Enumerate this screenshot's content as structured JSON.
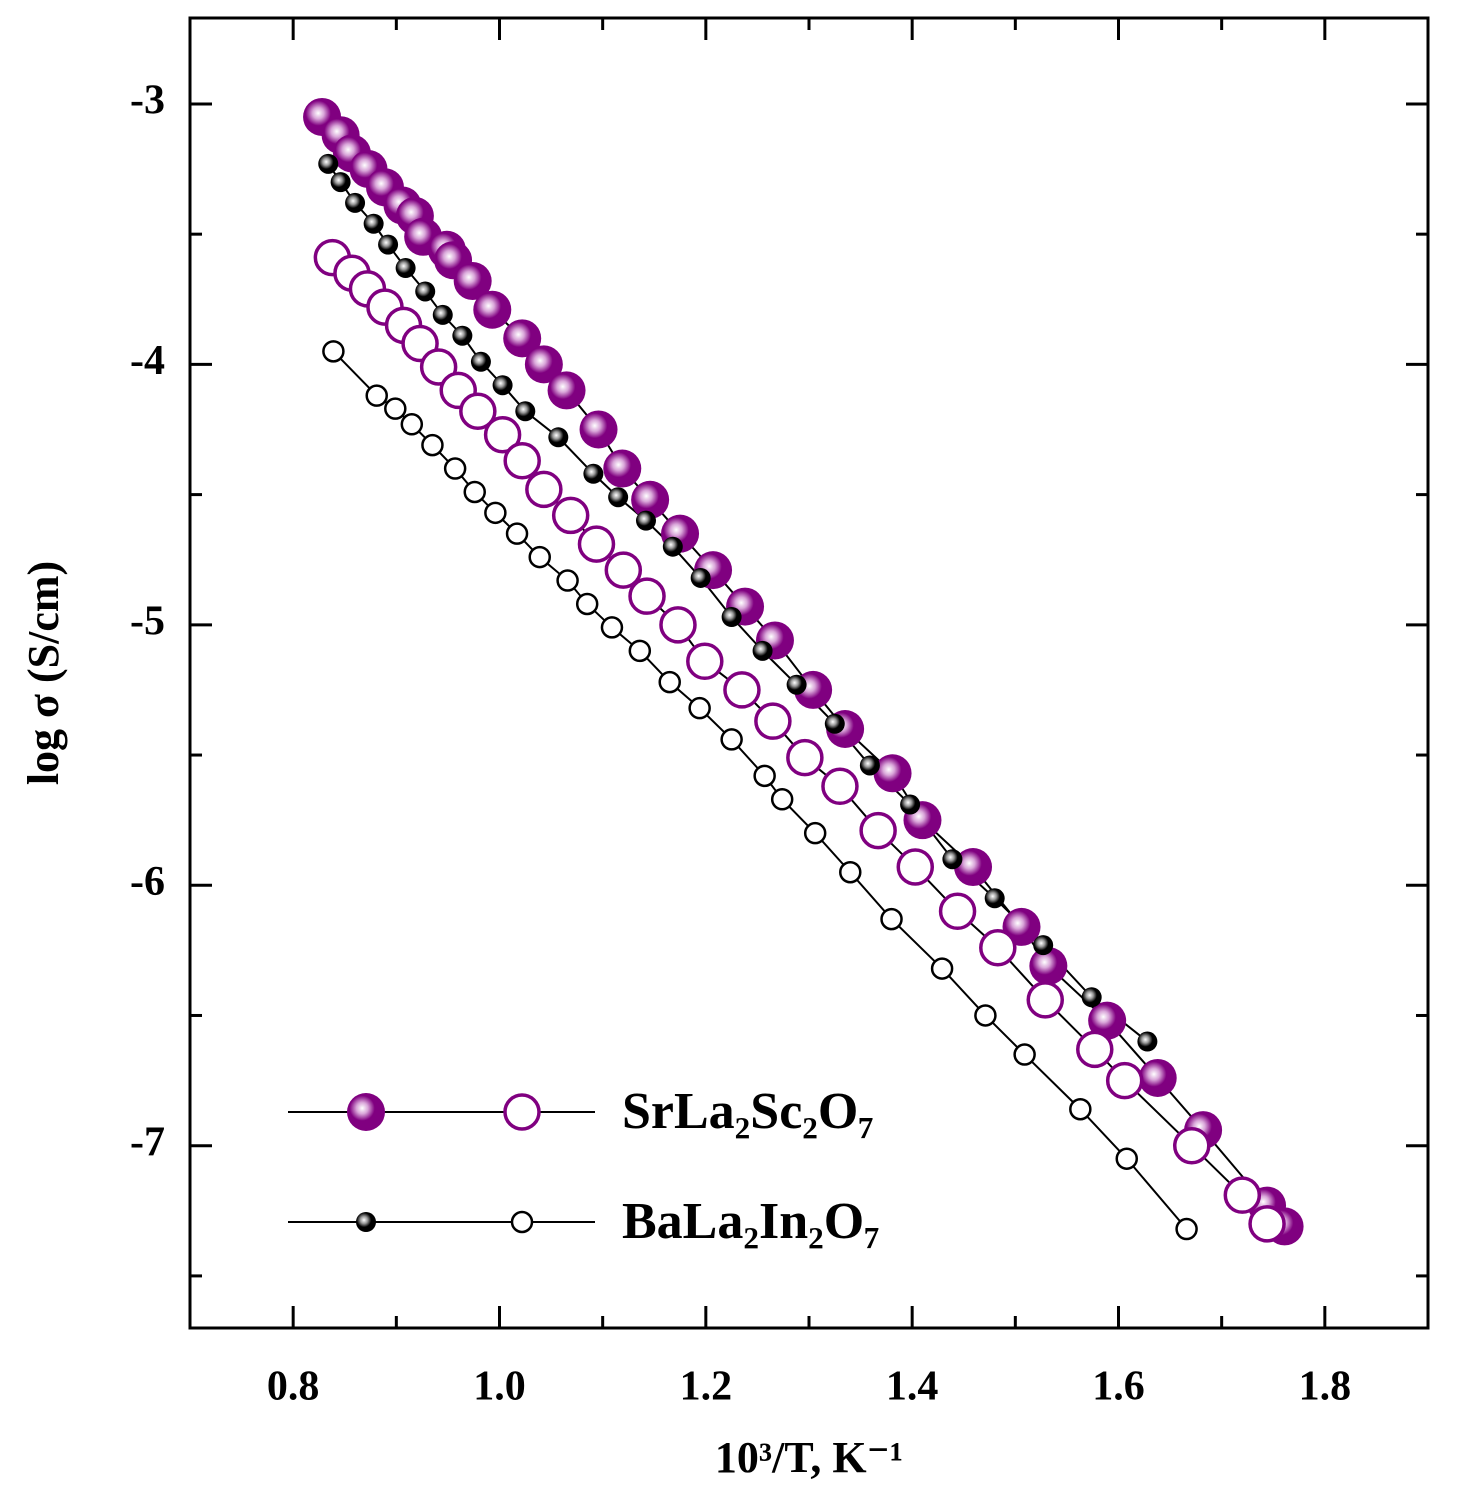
{
  "chart_data": {
    "type": "scatter",
    "x_label": "10³/T, K⁻¹",
    "y_label": "log σ (S/cm)",
    "xlim": [
      0.7,
      1.9
    ],
    "ylim": [
      -7.7,
      -2.67
    ],
    "xticks": [
      0.8,
      {
        "value": 1,
        "label": "1.0"
      },
      1.2,
      1.4,
      1.6,
      1.8
    ],
    "xminor": [
      0.9,
      1.1,
      1.3,
      1.5,
      1.7
    ],
    "yticks": [
      -3,
      -4,
      -5,
      -6,
      -7
    ],
    "yminor": [
      -3.5,
      -4.5,
      -5.5,
      -6.5,
      -7.5
    ],
    "series": [
      {
        "name": "SrLa₂Sc₂O₇",
        "color": "#800080",
        "size": "large",
        "markers": [
          {
            "style": "filled",
            "x": [
              0.828,
              0.846,
              0.857,
              0.873,
              0.889,
              0.906,
              0.918,
              0.926,
              0.949,
              0.955,
              0.974,
              0.993,
              1.022,
              1.043,
              1.065,
              1.096,
              1.119,
              1.146,
              1.175,
              1.207,
              1.238,
              1.267,
              1.304,
              1.335,
              1.381,
              1.41,
              1.459,
              1.506,
              1.532,
              1.589,
              1.638,
              1.682,
              1.744,
              1.761
            ],
            "values": [
              -3.05,
              -3.12,
              -3.19,
              -3.25,
              -3.32,
              -3.39,
              -3.43,
              -3.51,
              -3.56,
              -3.6,
              -3.68,
              -3.79,
              -3.9,
              -4,
              -4.1,
              -4.25,
              -4.4,
              -4.52,
              -4.65,
              -4.79,
              -4.93,
              -5.06,
              -5.25,
              -5.4,
              -5.57,
              -5.75,
              -5.93,
              -6.16,
              -6.31,
              -6.52,
              -6.74,
              -6.94,
              -7.23,
              -7.31
            ]
          },
          {
            "style": "open",
            "x": [
              0.838,
              0.857,
              0.872,
              0.889,
              0.907,
              0.923,
              0.941,
              0.96,
              0.979,
              1.003,
              1.022,
              1.043,
              1.069,
              1.094,
              1.12,
              1.143,
              1.173,
              1.199,
              1.235,
              1.265,
              1.296,
              1.33,
              1.367,
              1.403,
              1.444,
              1.483,
              1.529,
              1.577,
              1.606,
              1.671,
              1.72,
              1.744
            ],
            "values": [
              -3.59,
              -3.65,
              -3.71,
              -3.78,
              -3.85,
              -3.92,
              -4.01,
              -4.1,
              -4.18,
              -4.27,
              -4.37,
              -4.48,
              -4.58,
              -4.69,
              -4.79,
              -4.89,
              -5,
              -5.14,
              -5.25,
              -5.37,
              -5.51,
              -5.62,
              -5.79,
              -5.93,
              -6.1,
              -6.24,
              -6.44,
              -6.63,
              -6.75,
              -7,
              -7.19,
              -7.3
            ]
          }
        ]
      },
      {
        "name": "BaLa₂In₂O₇",
        "color": "#000000",
        "size": "small",
        "markers": [
          {
            "style": "filled",
            "x": [
              0.834,
              0.846,
              0.86,
              0.878,
              0.892,
              0.909,
              0.928,
              0.945,
              0.964,
              0.982,
              1.003,
              1.025,
              1.057,
              1.091,
              1.115,
              1.142,
              1.168,
              1.195,
              1.225,
              1.255,
              1.288,
              1.325,
              1.359,
              1.398,
              1.439,
              1.48,
              1.527,
              1.574,
              1.628
            ],
            "values": [
              -3.23,
              -3.3,
              -3.38,
              -3.46,
              -3.54,
              -3.63,
              -3.72,
              -3.81,
              -3.89,
              -3.99,
              -4.08,
              -4.18,
              -4.28,
              -4.42,
              -4.51,
              -4.6,
              -4.7,
              -4.82,
              -4.97,
              -5.1,
              -5.23,
              -5.38,
              -5.54,
              -5.69,
              -5.9,
              -6.05,
              -6.23,
              -6.43,
              -6.6
            ]
          },
          {
            "style": "open",
            "x": [
              0.839,
              0.881,
              0.899,
              0.915,
              0.935,
              0.957,
              0.976,
              0.996,
              1.017,
              1.039,
              1.066,
              1.085,
              1.109,
              1.136,
              1.165,
              1.194,
              1.225,
              1.257,
              1.274,
              1.306,
              1.34,
              1.38,
              1.429,
              1.471,
              1.509,
              1.563,
              1.608,
              1.666
            ],
            "values": [
              -3.95,
              -4.12,
              -4.17,
              -4.23,
              -4.31,
              -4.4,
              -4.49,
              -4.57,
              -4.65,
              -4.74,
              -4.83,
              -4.92,
              -5.01,
              -5.1,
              -5.22,
              -5.32,
              -5.44,
              -5.58,
              -5.67,
              -5.8,
              -5.95,
              -6.13,
              -6.32,
              -6.5,
              -6.65,
              -6.86,
              -7.05,
              -7.32
            ]
          }
        ]
      }
    ]
  }
}
